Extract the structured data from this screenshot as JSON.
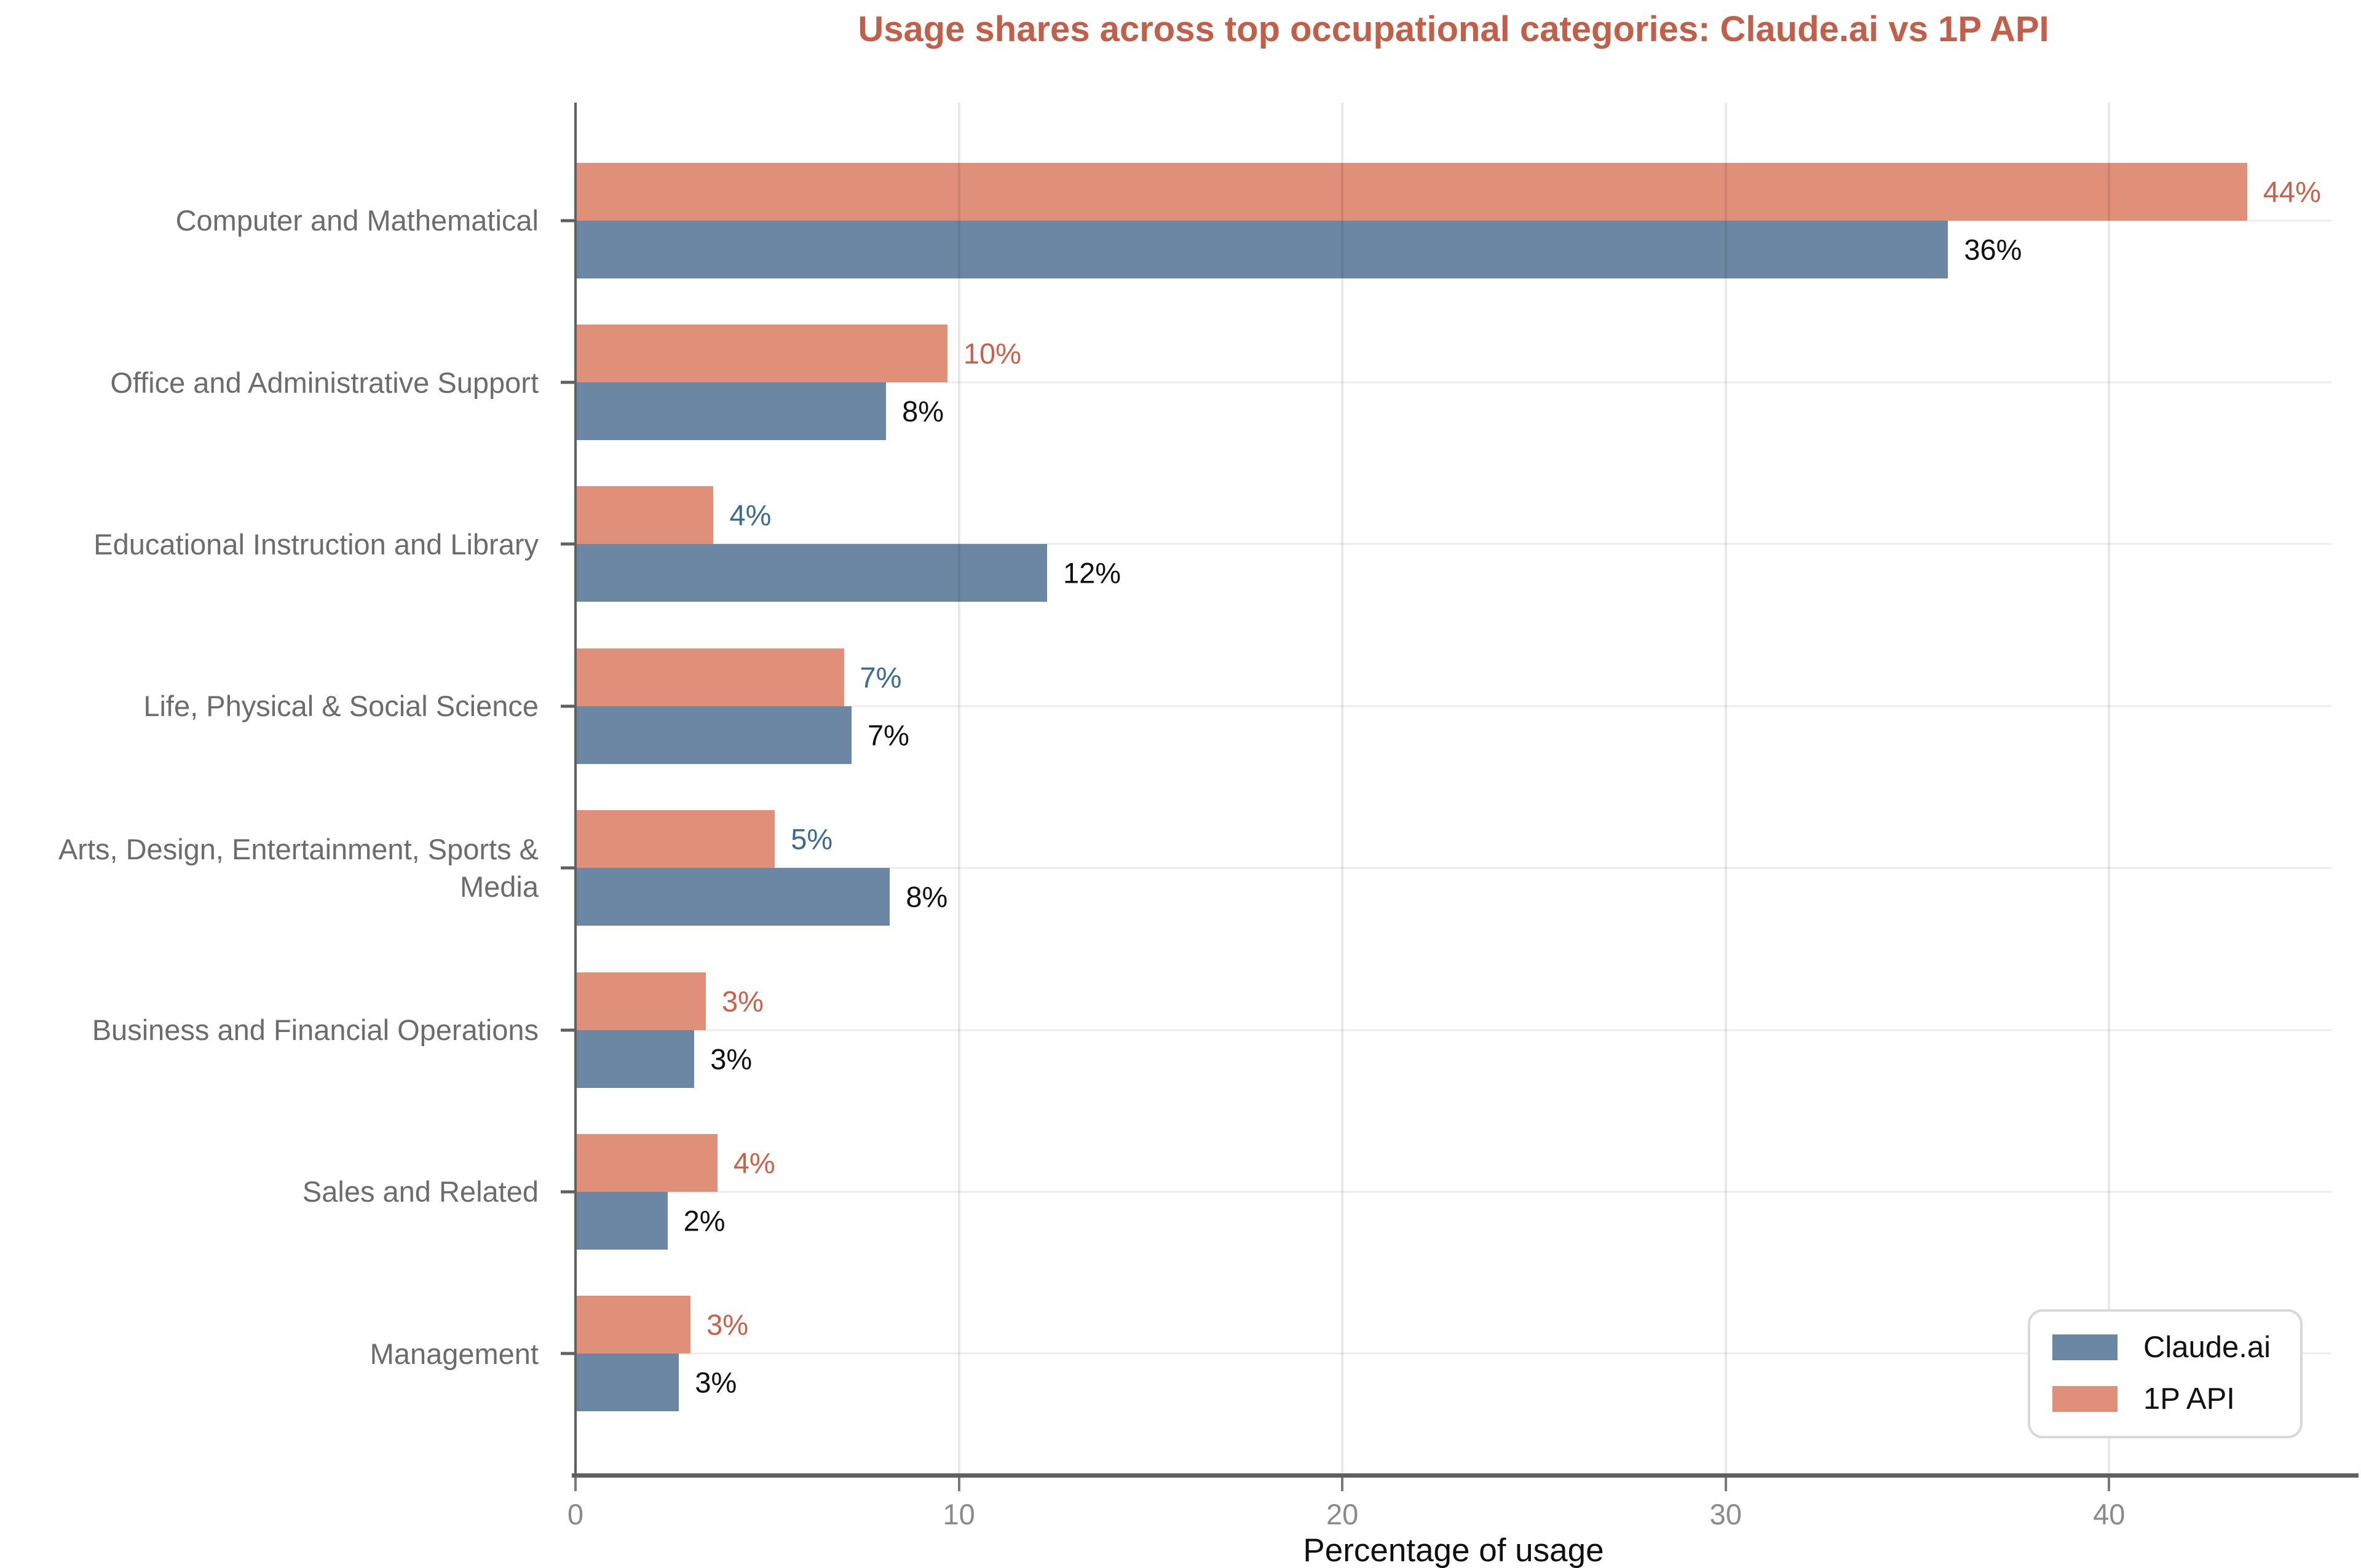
{
  "chart_data": {
    "type": "bar",
    "orientation": "horizontal",
    "title": "Usage shares across top occupational categories: Claude.ai vs 1P API",
    "title_color": "#c0604a",
    "xlabel": "Percentage of usage",
    "xlim": [
      0,
      45.8
    ],
    "xticks": [
      0,
      10,
      20,
      30,
      40
    ],
    "grid": "light gray vertical and horizontal gridlines",
    "legend_position": "lower-right",
    "categories": [
      "Computer and Mathematical",
      "Office and Administrative Support",
      "Educational Instruction and Library",
      "Life, Physical & Social Science",
      "Arts, Design, Entertainment, Sports & Media",
      "Business and Financial Operations",
      "Sales and Related",
      "Management"
    ],
    "series": [
      {
        "name": "Claude.ai",
        "color": "#6b87a3",
        "values": [
          35.8,
          8.1,
          12.3,
          7.2,
          8.2,
          3.1,
          2.4,
          2.7
        ],
        "labels": [
          "36%",
          "8%",
          "12%",
          "7%",
          "8%",
          "3%",
          "2%",
          "3%"
        ],
        "label_colors": [
          "#111111",
          "#111111",
          "#111111",
          "#111111",
          "#111111",
          "#111111",
          "#111111",
          "#111111"
        ]
      },
      {
        "name": "1P API",
        "color": "#e09078",
        "values": [
          43.6,
          9.7,
          3.6,
          7.0,
          5.2,
          3.4,
          3.7,
          3.0
        ],
        "labels": [
          "44%",
          "10%",
          "4%",
          "7%",
          "5%",
          "3%",
          "4%",
          "3%"
        ],
        "label_colors": [
          "#c9614b",
          "#c9614b",
          "#3a6b94",
          "#3a6b94",
          "#3a6b94",
          "#c9614b",
          "#c9614b",
          "#c9614b"
        ]
      }
    ],
    "axis_colors": {
      "spine": "#606060",
      "tick_label": "#8a8a8a",
      "category_label": "#6c6c6c",
      "xlabel_color": "#0f0f0f"
    }
  }
}
